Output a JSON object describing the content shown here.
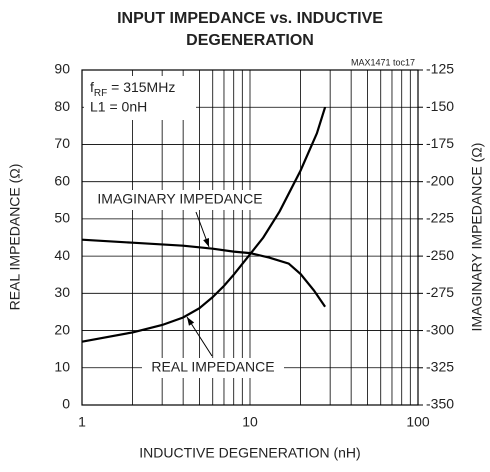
{
  "chart_data": {
    "type": "line",
    "title": [
      "INPUT IMPEDANCE vs. INDUCTIVE",
      "DEGENERATION"
    ],
    "xlabel": "INDUCTIVE DEGENERATION (nH)",
    "ylabel": "REAL IMPEDANCE (Ω)",
    "y2label": "IMAGINARY IMPEDANCE (Ω)",
    "xscale": "log",
    "xlim": [
      1,
      100
    ],
    "xticks": [
      1,
      10,
      100
    ],
    "xgrid_minor": [
      2,
      3,
      4,
      5,
      6,
      7,
      8,
      9,
      20,
      30,
      40,
      50,
      60,
      70,
      80,
      90
    ],
    "ylim": [
      0,
      90
    ],
    "yticks": [
      0,
      10,
      20,
      30,
      40,
      50,
      60,
      70,
      80,
      90
    ],
    "y2lim": [
      -350,
      -125
    ],
    "y2ticks": [
      -350,
      -325,
      -300,
      -275,
      -250,
      -225,
      -200,
      -175,
      -150,
      -125
    ],
    "grid": true,
    "annotations": {
      "source": "MAX1471 toc17",
      "freq": [
        "f",
        "RF",
        " = 315MHz"
      ],
      "inductor": "L1 = 0nH"
    },
    "series": [
      {
        "name": "REAL IMPEDANCE",
        "color": "#000000",
        "x": [
          1,
          2,
          3,
          4,
          5,
          6,
          7,
          8,
          10,
          12,
          15,
          20,
          25,
          28
        ],
        "values": [
          17,
          19.5,
          21.5,
          23.5,
          26,
          29,
          32,
          35,
          40.5,
          45,
          52,
          63,
          73,
          80
        ]
      },
      {
        "name": "IMAGINARY IMPEDANCE",
        "color": "#000000",
        "axis": "y2",
        "x": [
          1,
          2,
          4,
          6,
          8,
          10,
          13,
          17,
          20,
          24,
          28
        ],
        "values": [
          -239,
          -241,
          -243,
          -245,
          -247,
          -248,
          -251,
          -255,
          -262,
          -273,
          -284
        ]
      }
    ]
  }
}
